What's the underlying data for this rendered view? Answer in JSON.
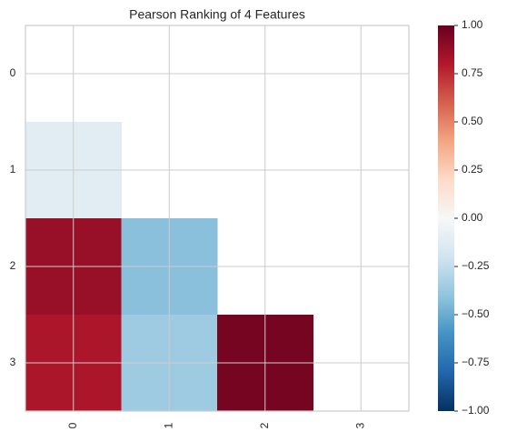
{
  "chart_data": {
    "type": "heatmap",
    "title": "Pearson Ranking of 4 Features",
    "x": [
      "0",
      "1",
      "2",
      "3"
    ],
    "y": [
      "0",
      "1",
      "2",
      "3"
    ],
    "values": [
      [
        null,
        null,
        null,
        null
      ],
      [
        -0.11,
        null,
        null,
        null
      ],
      [
        0.87,
        -0.42,
        null,
        null
      ],
      [
        0.82,
        -0.36,
        0.96,
        null
      ]
    ],
    "colormap": "RdBu_r",
    "clim": [
      -1,
      1
    ],
    "cticks": [
      {
        "value": -1,
        "label": "−1.00"
      },
      {
        "value": -0.75,
        "label": "−0.75"
      },
      {
        "value": -0.5,
        "label": "−0.50"
      },
      {
        "value": -0.25,
        "label": "−0.25"
      },
      {
        "value": 0,
        "label": "0.00"
      },
      {
        "value": 0.25,
        "label": "0.25"
      },
      {
        "value": 0.5,
        "label": "0.50"
      },
      {
        "value": 0.75,
        "label": "0.75"
      },
      {
        "value": 1,
        "label": "1.00"
      }
    ],
    "grid": true
  }
}
